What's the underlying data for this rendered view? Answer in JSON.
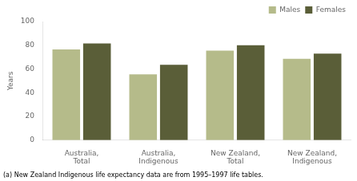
{
  "chart_data": {
    "type": "bar",
    "categories": [
      "Australia,\nTotal",
      "Australia,\nIndigenous",
      "New Zealand,\nTotal",
      "New Zealand,\nIndigenous"
    ],
    "series": [
      {
        "name": "Males",
        "color": "#b5bb8a",
        "values": [
          76.5,
          55.5,
          75.5,
          68.5
        ]
      },
      {
        "name": "Females",
        "color": "#5a5e38",
        "values": [
          81.5,
          63.5,
          80.0,
          73.0
        ]
      }
    ],
    "ylabel": "Years",
    "ylim": [
      0,
      100
    ],
    "yticks": [
      0,
      20,
      40,
      60,
      80,
      100
    ],
    "grid": false,
    "legend": "upper right",
    "annotations": [
      "(a) New Zealand Indigenous life expectancy data are from 1995–1997 life tables."
    ]
  }
}
